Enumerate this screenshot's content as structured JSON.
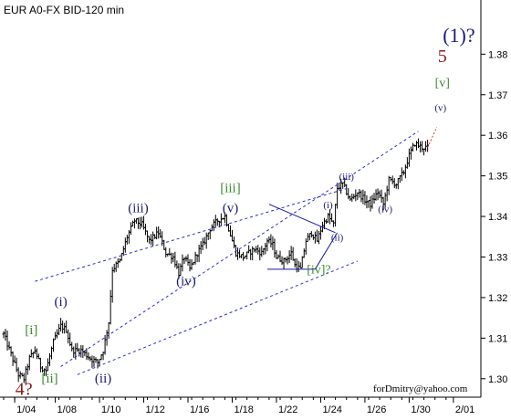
{
  "chart_data": {
    "type": "ohlc",
    "title": "EUR A0-FX BID-120 min",
    "ylim": [
      1.295,
      1.392
    ],
    "y_ticks": [
      1.3,
      1.31,
      1.32,
      1.33,
      1.34,
      1.35,
      1.36,
      1.37,
      1.38
    ],
    "y_tick_labels": [
      "1.30",
      "1.31",
      "1.32",
      "1.33",
      "1.34",
      "1.35",
      "1.36",
      "1.37",
      "1.38"
    ],
    "x_tick_labels": [
      "1/04",
      "1/08",
      "1/10",
      "1/12",
      "1/16",
      "1/18",
      "1/22",
      "1/24",
      "1/26",
      "1/30",
      "2/01"
    ],
    "x_tick_bars": [
      6,
      28,
      52,
      76,
      100,
      124,
      148,
      172,
      196,
      220,
      244
    ],
    "n_bars": 236,
    "series_color": "#000000",
    "price_path": [
      [
        0,
        1.311
      ],
      [
        4,
        1.306
      ],
      [
        8,
        1.301
      ],
      [
        11,
        1.3
      ],
      [
        14,
        1.305
      ],
      [
        17,
        1.307
      ],
      [
        20,
        1.303
      ],
      [
        23,
        1.302
      ],
      [
        27,
        1.309
      ],
      [
        31,
        1.313
      ],
      [
        34,
        1.312
      ],
      [
        37,
        1.307
      ],
      [
        42,
        1.307
      ],
      [
        47,
        1.305
      ],
      [
        51,
        1.304
      ],
      [
        54,
        1.307
      ],
      [
        57,
        1.314
      ],
      [
        59,
        1.327
      ],
      [
        63,
        1.329
      ],
      [
        67,
        1.335
      ],
      [
        71,
        1.339
      ],
      [
        75,
        1.338
      ],
      [
        79,
        1.334
      ],
      [
        84,
        1.336
      ],
      [
        88,
        1.331
      ],
      [
        92,
        1.33
      ],
      [
        95,
        1.326
      ],
      [
        98,
        1.33
      ],
      [
        101,
        1.327
      ],
      [
        105,
        1.331
      ],
      [
        108,
        1.333
      ],
      [
        112,
        1.337
      ],
      [
        116,
        1.339
      ],
      [
        120,
        1.34
      ],
      [
        122,
        1.337
      ],
      [
        126,
        1.331
      ],
      [
        130,
        1.33
      ],
      [
        136,
        1.332
      ],
      [
        140,
        1.331
      ],
      [
        143,
        1.334
      ],
      [
        146,
        1.333
      ],
      [
        148,
        1.33
      ],
      [
        152,
        1.329
      ],
      [
        156,
        1.331
      ],
      [
        158,
        1.328
      ],
      [
        161,
        1.327
      ],
      [
        164,
        1.334
      ],
      [
        167,
        1.336
      ],
      [
        170,
        1.334
      ],
      [
        173,
        1.338
      ],
      [
        176,
        1.34
      ],
      [
        179,
        1.338
      ],
      [
        181,
        1.347
      ],
      [
        184,
        1.348
      ],
      [
        188,
        1.344
      ],
      [
        192,
        1.346
      ],
      [
        196,
        1.344
      ],
      [
        199,
        1.343
      ],
      [
        203,
        1.346
      ],
      [
        206,
        1.343
      ],
      [
        209,
        1.349
      ],
      [
        213,
        1.348
      ],
      [
        217,
        1.351
      ],
      [
        220,
        1.355
      ],
      [
        223,
        1.358
      ],
      [
        227,
        1.357
      ],
      [
        230,
        1.357
      ]
    ],
    "channel_lines": [
      [
        [
          31,
          1.303
        ],
        [
          225,
          1.361
        ]
      ],
      [
        [
          17,
          1.324
        ],
        [
          187,
          1.347
        ]
      ],
      [
        [
          40,
          1.301
        ],
        [
          192,
          1.329
        ]
      ]
    ],
    "triangle_lines": [
      [
        [
          144,
          1.343
        ],
        [
          180,
          1.336
        ]
      ],
      [
        [
          143,
          1.327
        ],
        [
          169,
          1.327
        ]
      ],
      [
        [
          169,
          1.327
        ],
        [
          181,
          1.336
        ]
      ]
    ],
    "forecast_line": [
      [
        230,
        1.357
      ],
      [
        235,
        1.362
      ]
    ],
    "wave_labels": [
      {
        "text": "(1)?",
        "bar": 247,
        "price": 1.383,
        "color": "#1b1b78",
        "size": 22
      },
      {
        "text": "5",
        "bar": 238,
        "price": 1.378,
        "color": "#8b1a1a",
        "size": 20
      },
      {
        "text": "[v]",
        "bar": 238,
        "price": 1.372,
        "color": "#3a8a2c",
        "size": 14
      },
      {
        "text": "(v)",
        "bar": 237,
        "price": 1.366,
        "color": "#1b1b78",
        "size": 11
      },
      {
        "text": "(iii)",
        "bar": 73,
        "price": 1.341,
        "color": "#1b1b78",
        "size": 15
      },
      {
        "text": "[iii]",
        "bar": 123,
        "price": 1.346,
        "color": "#3a8a2c",
        "size": 15
      },
      {
        "text": "(v)",
        "bar": 123,
        "price": 1.341,
        "color": "#1b1b78",
        "size": 15
      },
      {
        "text": "(i)",
        "bar": 31,
        "price": 1.318,
        "color": "#1b1b78",
        "size": 15
      },
      {
        "text": "[i]",
        "bar": 15,
        "price": 1.311,
        "color": "#3a8a2c",
        "size": 15
      },
      {
        "text": "(iv)",
        "bar": 99,
        "price": 1.323,
        "color": "#1b1b78",
        "size": 15
      },
      {
        "text": "(ii)",
        "bar": 54,
        "price": 1.299,
        "color": "#1b1b78",
        "size": 15
      },
      {
        "text": "4?",
        "bar": 11,
        "price": 1.296,
        "color": "#8b1a1a",
        "size": 20
      },
      {
        "text": "[ii]",
        "bar": 25,
        "price": 1.299,
        "color": "#3a8a2c",
        "size": 15
      },
      {
        "text": "[iv]?",
        "bar": 171,
        "price": 1.326,
        "color": "#3a8a2c",
        "size": 14
      },
      {
        "text": "(i)",
        "bar": 176,
        "price": 1.342,
        "color": "#1b1b78",
        "size": 11
      },
      {
        "text": "(ii)",
        "bar": 181,
        "price": 1.334,
        "color": "#1b1b78",
        "size": 11
      },
      {
        "text": "(iii)",
        "bar": 186,
        "price": 1.349,
        "color": "#1b1b78",
        "size": 11
      },
      {
        "text": "(iv)",
        "bar": 207,
        "price": 1.341,
        "color": "#1b1b78",
        "size": 11
      }
    ],
    "credit": "forDmitry@yahoo.com",
    "channel_color": "#2b2bd6",
    "grid": false
  }
}
